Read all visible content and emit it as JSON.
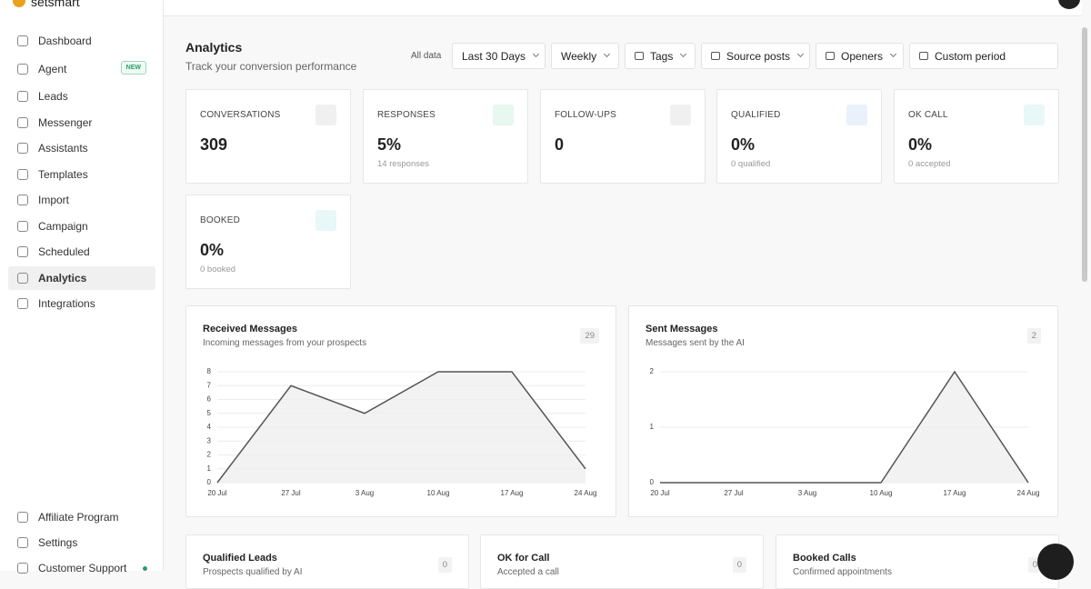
{
  "sidebar": {
    "logo": "setsmart",
    "nav": [
      {
        "label": "Dashboard"
      },
      {
        "label": "Agent",
        "badge": "NEW"
      },
      {
        "label": "Leads"
      },
      {
        "label": "Messenger"
      },
      {
        "label": "Assistants"
      },
      {
        "label": "Templates"
      },
      {
        "label": "Import"
      },
      {
        "label": "Campaign"
      },
      {
        "label": "Scheduled"
      },
      {
        "label": "Analytics",
        "active": true
      },
      {
        "label": "Integrations"
      }
    ],
    "bottom": [
      {
        "label": "Affiliate Program"
      },
      {
        "label": "Settings"
      },
      {
        "label": "Customer Support"
      }
    ]
  },
  "header": {
    "title": "Analytics",
    "subtitle": "Track your conversion performance",
    "filter_label": "All data",
    "filters": [
      "Last 30 Days",
      "Weekly",
      "Tags",
      "Source posts",
      "Openers",
      "Custom period"
    ]
  },
  "stats": [
    {
      "label": "CONVERSATIONS",
      "value": "309"
    },
    {
      "label": "RESPONSES",
      "value": "5%",
      "sub": "14 responses"
    },
    {
      "label": "FOLLOW-UPS",
      "value": "0"
    },
    {
      "label": "QUALIFIED",
      "value": "0%",
      "sub": "0 qualified"
    },
    {
      "label": "OK CALL",
      "value": "0%",
      "sub": "0 accepted"
    },
    {
      "label": "BOOKED",
      "value": "0%",
      "sub": "0 booked"
    }
  ],
  "chart_data": [
    {
      "type": "line",
      "title": "Received Messages",
      "subtitle": "Incoming messages from your prospects",
      "total": "29",
      "categories": [
        "20 Jul",
        "27 Jul",
        "3 Aug",
        "10 Aug",
        "17 Aug",
        "24 Aug"
      ],
      "values": [
        0,
        7,
        5,
        8,
        8,
        1
      ],
      "color": "#555555",
      "ylim": [
        0,
        8
      ],
      "yticks": [
        0,
        1,
        2,
        3,
        4,
        5,
        6,
        7,
        8
      ],
      "grid": true
    },
    {
      "type": "line",
      "title": "Sent Messages",
      "subtitle": "Messages sent by the AI",
      "total": "2",
      "categories": [
        "20 Jul",
        "27 Jul",
        "3 Aug",
        "10 Aug",
        "17 Aug",
        "24 Aug"
      ],
      "values": [
        0,
        0,
        0,
        0,
        2,
        0
      ],
      "color": "#555555",
      "ylim": [
        0,
        2
      ],
      "yticks": [
        0,
        1,
        2
      ],
      "grid": true
    }
  ],
  "bottom_cards": [
    {
      "title": "Qualified Leads",
      "subtitle": "Prospects qualified by AI",
      "total": "0"
    },
    {
      "title": "OK for Call",
      "subtitle": "Accepted a call",
      "total": "0"
    },
    {
      "title": "Booked Calls",
      "subtitle": "Confirmed appointments",
      "total": "0"
    }
  ]
}
